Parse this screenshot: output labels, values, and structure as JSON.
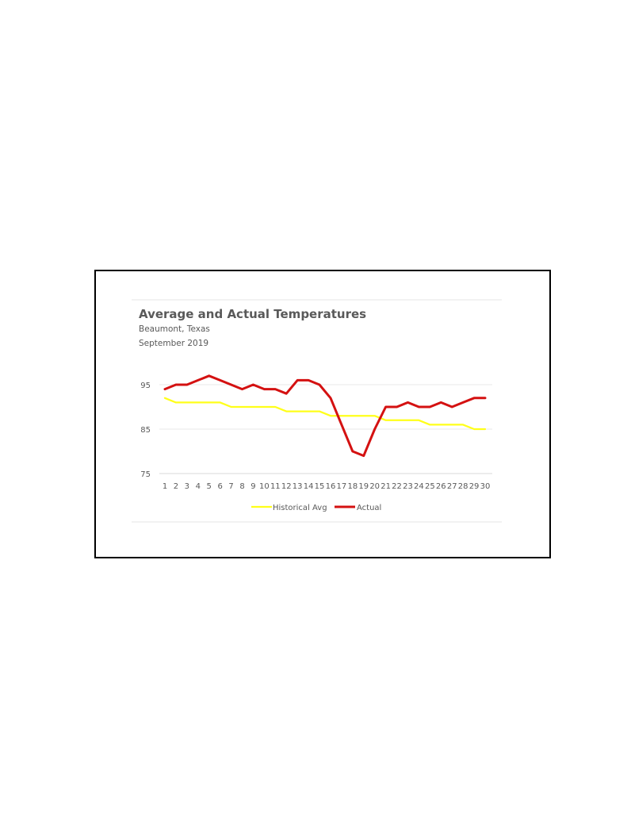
{
  "chart_data": {
    "type": "line",
    "title": "Average and Actual Temperatures",
    "subtitle_lines": [
      "Beaumont, Texas",
      "September 2019"
    ],
    "xlabel": "",
    "ylabel": "",
    "categories": [
      "1",
      "2",
      "3",
      "4",
      "5",
      "6",
      "7",
      "8",
      "9",
      "10",
      "11",
      "12",
      "13",
      "14",
      "15",
      "16",
      "17",
      "18",
      "19",
      "20",
      "21",
      "22",
      "23",
      "24",
      "25",
      "26",
      "27",
      "28",
      "29",
      "30"
    ],
    "ylim": [
      75,
      100
    ],
    "yticks": [
      75,
      85,
      95
    ],
    "grid": true,
    "legend_position": "bottom",
    "series": [
      {
        "name": "Historical Avg",
        "color": "#FFFF1A",
        "values": [
          92,
          91,
          91,
          91,
          91,
          91,
          90,
          90,
          90,
          90,
          90,
          89,
          89,
          89,
          89,
          88,
          88,
          88,
          88,
          88,
          87,
          87,
          87,
          87,
          86,
          86,
          86,
          86,
          85,
          85
        ]
      },
      {
        "name": "Actual",
        "color": "#D41111",
        "values": [
          94,
          95,
          95,
          96,
          97,
          96,
          95,
          94,
          95,
          94,
          94,
          93,
          96,
          96,
          95,
          92,
          86,
          80,
          79,
          85,
          90,
          90,
          91,
          90,
          90,
          91,
          90,
          91,
          92,
          92
        ]
      }
    ]
  }
}
